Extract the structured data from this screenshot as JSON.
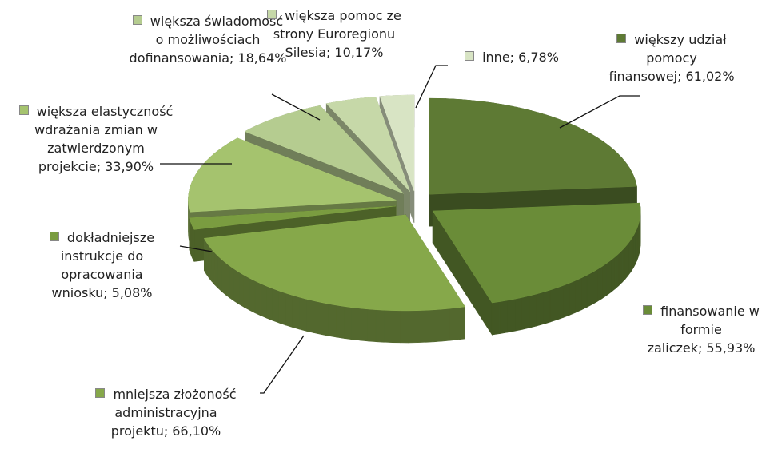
{
  "chart_data": {
    "type": "pie",
    "categories": [
      "większy udział pomocy finansowej;",
      "finansowanie w formie zaliczek;",
      "mniejsza złożoność administracyjna projektu;",
      "dokładniejsze instrukcje do opracowania wniosku;",
      "większa elastyczność wdrażania zmian w zatwierdzonym projekcie;",
      "większa świadomość o możliwościach dofinansowania;",
      "większa pomoc ze strony Euroregionu Silesia;",
      "inne;"
    ],
    "values": [
      61.02,
      55.93,
      66.1,
      5.08,
      33.9,
      18.64,
      10.17,
      6.78
    ],
    "value_labels": [
      "61,02%",
      "55,93%",
      "66,10%",
      "5,08%",
      "33,90%",
      "18,64%",
      "10,17%",
      "6,78%"
    ],
    "colors": [
      "#5e7a34",
      "#6a8c38",
      "#86a84a",
      "#7a9c40",
      "#a5c36e",
      "#b5cc90",
      "#c6d8a8",
      "#d8e4c4"
    ]
  }
}
